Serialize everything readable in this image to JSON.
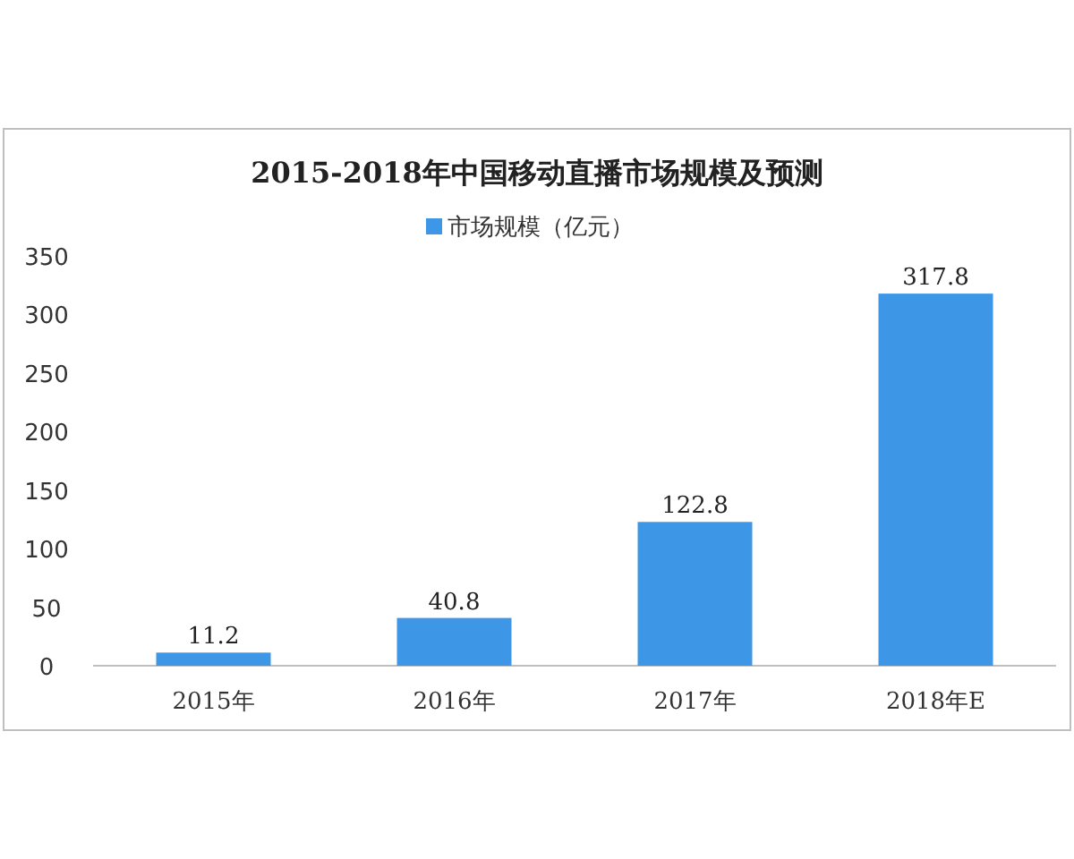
{
  "chart_data": {
    "type": "bar",
    "title": "2015-2018年中国移动直播市场规模及预测",
    "categories": [
      "2015年",
      "2016年",
      "2017年",
      "2018年E"
    ],
    "series": [
      {
        "name": "市场规模（亿元）",
        "color": "#3d97e6",
        "values": [
          11.2,
          40.8,
          122.8,
          317.8
        ]
      }
    ],
    "ylim": [
      0,
      350
    ],
    "yticks": [
      0,
      50,
      100,
      150,
      200,
      250,
      300,
      350
    ],
    "data_labels": true,
    "legend": "top",
    "grid": false
  }
}
